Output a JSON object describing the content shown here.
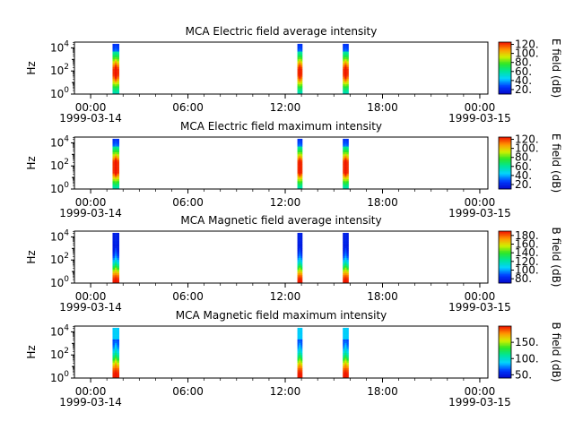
{
  "chart_data": [
    {
      "type": "heatmap",
      "title": "MCA  Electric field average intensity",
      "ylabel": "Hz",
      "colorbar": {
        "label": "E field (dB)",
        "range": [
          10,
          125
        ],
        "ticks": [
          "20.",
          "40.",
          "60.",
          "80.",
          "100.",
          "120."
        ]
      },
      "profile": "e_avg",
      "bursts": [
        {
          "start_hour": 1.35,
          "end_hour": 1.75
        },
        {
          "start_hour": 12.75,
          "end_hour": 13.05
        },
        {
          "start_hour": 15.55,
          "end_hour": 15.9
        }
      ]
    },
    {
      "type": "heatmap",
      "title": "MCA  Electric field maximum intensity",
      "ylabel": "Hz",
      "colorbar": {
        "label": "E field (dB)",
        "range": [
          10,
          125
        ],
        "ticks": [
          "20.",
          "40.",
          "60.",
          "80.",
          "100.",
          "120."
        ]
      },
      "profile": "e_max",
      "bursts": [
        {
          "start_hour": 1.35,
          "end_hour": 1.75
        },
        {
          "start_hour": 12.75,
          "end_hour": 13.05
        },
        {
          "start_hour": 15.55,
          "end_hour": 15.9
        }
      ]
    },
    {
      "type": "heatmap",
      "title": "MCA  Magnetic field average intensity",
      "ylabel": "Hz",
      "colorbar": {
        "label": "B field (dB)",
        "range": [
          70,
          190
        ],
        "ticks": [
          "80.",
          "100.",
          "120.",
          "140.",
          "160.",
          "180."
        ]
      },
      "profile": "b_avg",
      "bursts": [
        {
          "start_hour": 1.35,
          "end_hour": 1.75
        },
        {
          "start_hour": 12.75,
          "end_hour": 13.05
        },
        {
          "start_hour": 15.55,
          "end_hour": 15.9
        }
      ]
    },
    {
      "type": "heatmap",
      "title": "MCA  Magnetic field maximum intensity",
      "ylabel": "Hz",
      "colorbar": {
        "label": "B field (dB)",
        "range": [
          40,
          200
        ],
        "ticks": [
          "50.",
          "100.",
          "150."
        ]
      },
      "profile": "b_max",
      "bursts": [
        {
          "start_hour": 1.35,
          "end_hour": 1.75
        },
        {
          "start_hour": 12.75,
          "end_hour": 13.05
        },
        {
          "start_hour": 15.55,
          "end_hour": 15.9
        }
      ]
    }
  ],
  "axes": {
    "x_hours_range": [
      -1,
      24.5
    ],
    "x_ticks": [
      {
        "hour": 0,
        "label": "00:00"
      },
      {
        "hour": 6,
        "label": "06:00"
      },
      {
        "hour": 12,
        "label": "12:00"
      },
      {
        "hour": 18,
        "label": "18:00"
      },
      {
        "hour": 24,
        "label": "00:00"
      }
    ],
    "date_left": "1999-03-14",
    "date_right": "1999-03-15",
    "y_log_range": [
      0,
      4.5
    ],
    "y_ticks": [
      {
        "exp": 0,
        "base": "10",
        "sup": "0"
      },
      {
        "exp": 2,
        "base": "10",
        "sup": "2"
      },
      {
        "exp": 4,
        "base": "10",
        "sup": "4"
      }
    ]
  }
}
